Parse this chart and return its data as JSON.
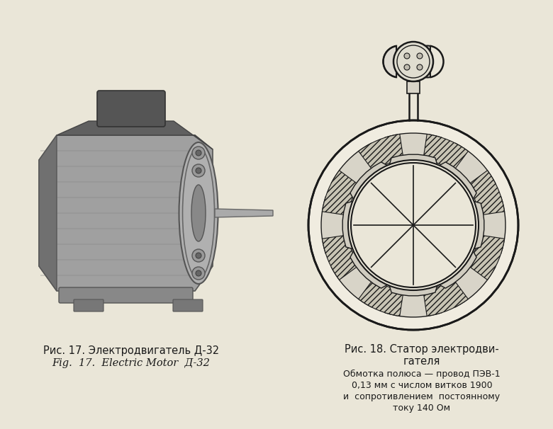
{
  "bg_color": "#eae6d8",
  "fig_width": 7.8,
  "fig_height": 6.06,
  "caption_left_line1": "Рис. 17. Электродвигатель Д-32",
  "caption_left_line2": "Fig.  17.  Electric Motor  Д-32",
  "caption_right_line1": "Рис. 18. Статор электродви-",
  "caption_right_line2": "гателя",
  "caption_right_line3": "Обмотка полюса — провод ПЭВ-1",
  "caption_right_line4": "0,13 мм с числом витков 1900",
  "caption_right_line5": "и  сопротивлением  постоянному",
  "caption_right_line6": "току 140 Ом",
  "text_color": "#1a1a1a",
  "line_color": "#1a1a1a"
}
